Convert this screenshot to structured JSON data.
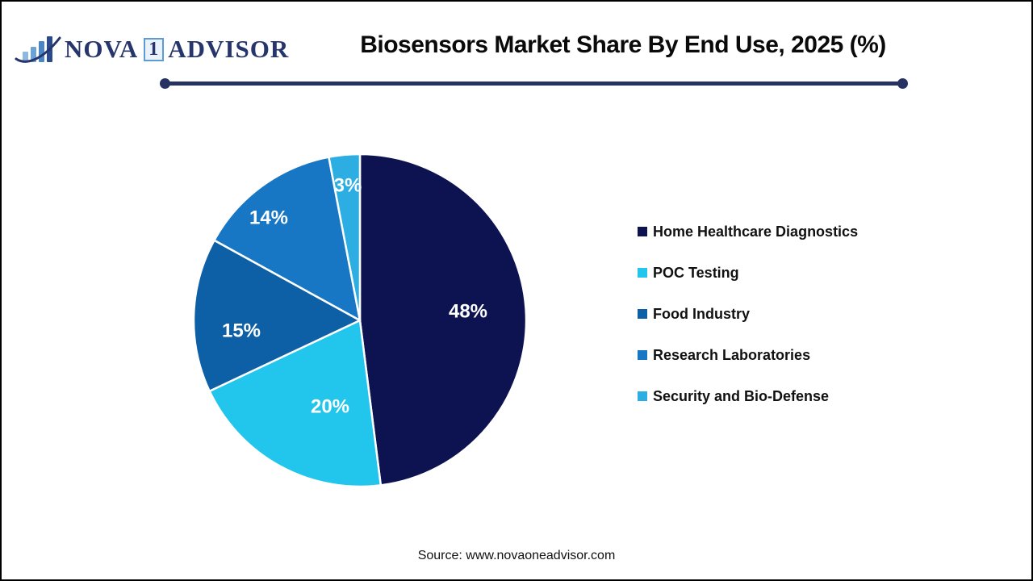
{
  "logo": {
    "word1": "NOVA",
    "boxed_digit": "1",
    "word2": "ADVISOR"
  },
  "header": {
    "title": "Biosensors Market Share By End Use, 2025 (%)"
  },
  "chart_data": {
    "type": "pie",
    "title": "Biosensors Market Share By End Use, 2025 (%)",
    "categories": [
      "Home Healthcare Diagnostics",
      "POC Testing",
      "Food Industry",
      "Research Laboratories",
      "Security and Bio-Defense"
    ],
    "values": [
      48,
      20,
      15,
      14,
      3
    ],
    "slice_labels": [
      "48%",
      "20%",
      "15%",
      "14%",
      "3%"
    ],
    "colors": [
      "#0d1250",
      "#22c5ec",
      "#0e60a6",
      "#1877c5",
      "#2caee3"
    ],
    "start_angle_deg": 0,
    "direction": "clockwise",
    "slice_border_color": "#ffffff",
    "legend_position": "right"
  },
  "theme": {
    "accent_navy": "#263262",
    "logo_navy": "#26356b",
    "logo_light_blue": "#5c9bd3"
  },
  "footer": {
    "source": "Source: www.novaoneadvisor.com"
  }
}
